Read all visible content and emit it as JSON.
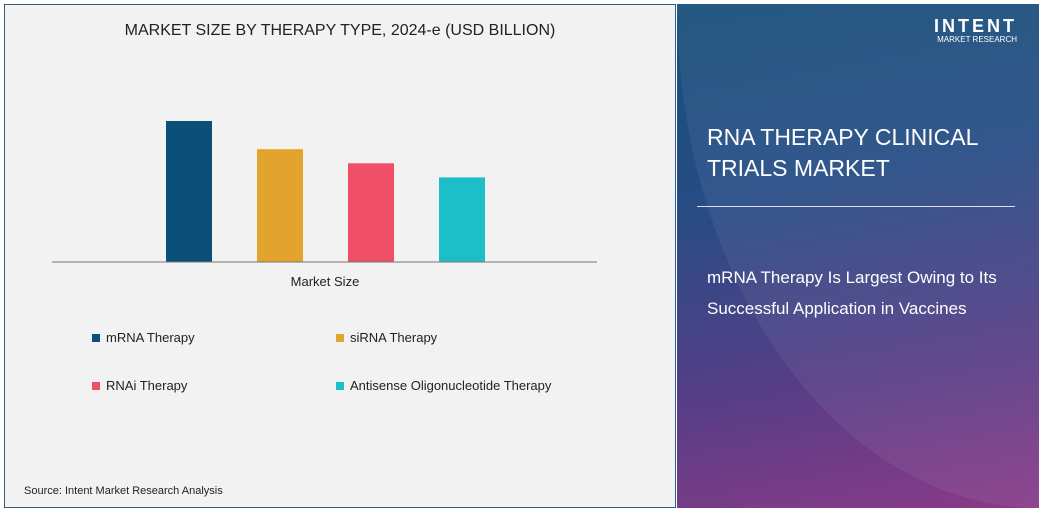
{
  "chart_data": {
    "type": "bar",
    "title": "MARKET SIZE BY THERAPY TYPE, 2024-e (USD BILLION)",
    "xlabel": "Market Size",
    "categories": [
      "Market Size"
    ],
    "series": [
      {
        "name": "mRNA Therapy",
        "values": [
          1.0
        ],
        "color": "#0b5079"
      },
      {
        "name": "siRNA Therapy",
        "values": [
          0.8
        ],
        "color": "#e2a42c"
      },
      {
        "name": "RNAi Therapy",
        "values": [
          0.7
        ],
        "color": "#ef5068"
      },
      {
        "name": "Antisense Oligonucleotide Therapy",
        "values": [
          0.6
        ],
        "color": "#1cbfc8"
      }
    ],
    "value_scale": "relative, no axis printed",
    "grid": false,
    "legend_position": "bottom"
  },
  "source": "Source:  Intent Market Research Analysis",
  "panel": {
    "title": "RNA THERAPY CLINICAL TRIALS MARKET",
    "subtitle": "mRNA Therapy Is Largest Owing to Its Successful Application in Vaccines",
    "logo": {
      "name": "INTENT",
      "tagline": "MARKET RESEARCH"
    }
  }
}
